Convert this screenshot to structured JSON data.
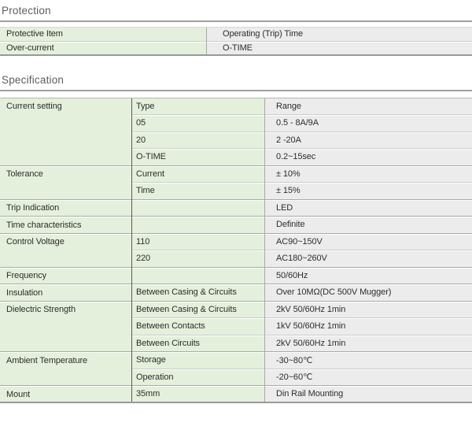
{
  "colors": {
    "cell_green": "#e4f0db",
    "cell_gray": "#ececec",
    "text": "#2d2d2d",
    "heading_text": "#5d5d5d",
    "rule": "#a0a0a0",
    "border_strong": "#999999",
    "border_dark": "#5a5a5a",
    "border_mid": "#a9a9a9",
    "border_light": "#cbcbcb"
  },
  "protection": {
    "heading": "Protection",
    "rows": [
      [
        "Protective Item",
        "Operating (Trip) Time"
      ],
      [
        "Over-current",
        "O-TIME"
      ]
    ]
  },
  "specification": {
    "heading": "Specification",
    "groups": [
      {
        "label": "Current setting",
        "rows": [
          [
            "Type",
            "Range"
          ],
          [
            "05",
            "0.5 - 8A/9A"
          ],
          [
            "20",
            "2 -20A"
          ],
          [
            "O-TIME",
            "0.2~15sec"
          ]
        ]
      },
      {
        "label": "Tolerance",
        "rows": [
          [
            "Current",
            "± 10%"
          ],
          [
            "Time",
            "± 15%"
          ]
        ]
      },
      {
        "label": "Trip Indication",
        "rows": [
          [
            "",
            "LED"
          ]
        ]
      },
      {
        "label": "Time characteristics",
        "rows": [
          [
            "",
            "Definite"
          ]
        ]
      },
      {
        "label": "Control Voltage",
        "rows": [
          [
            "110",
            "AC90~150V"
          ],
          [
            "220",
            "AC180~260V"
          ]
        ]
      },
      {
        "label": "Frequency",
        "rows": [
          [
            "",
            "50/60Hz"
          ]
        ]
      },
      {
        "label": "Insulation",
        "rows": [
          [
            "Between Casing & Circuits",
            "Over 10MΩ(DC 500V Mugger)"
          ]
        ]
      },
      {
        "label": "Dielectric Strength",
        "rows": [
          [
            "Between Casing & Circuits",
            "2kV 50/60Hz 1min"
          ],
          [
            "Between Contacts",
            "1kV 50/60Hz 1min"
          ],
          [
            "Between Circuits",
            "2kV 50/60Hz 1min"
          ]
        ]
      },
      {
        "label": "Ambient Temperature",
        "rows": [
          [
            "Storage",
            "-30~80℃"
          ],
          [
            "Operation",
            "-20~60℃"
          ]
        ]
      },
      {
        "label": "Mount",
        "rows": [
          [
            "35mm",
            "Din Rail Mounting"
          ]
        ]
      }
    ]
  }
}
